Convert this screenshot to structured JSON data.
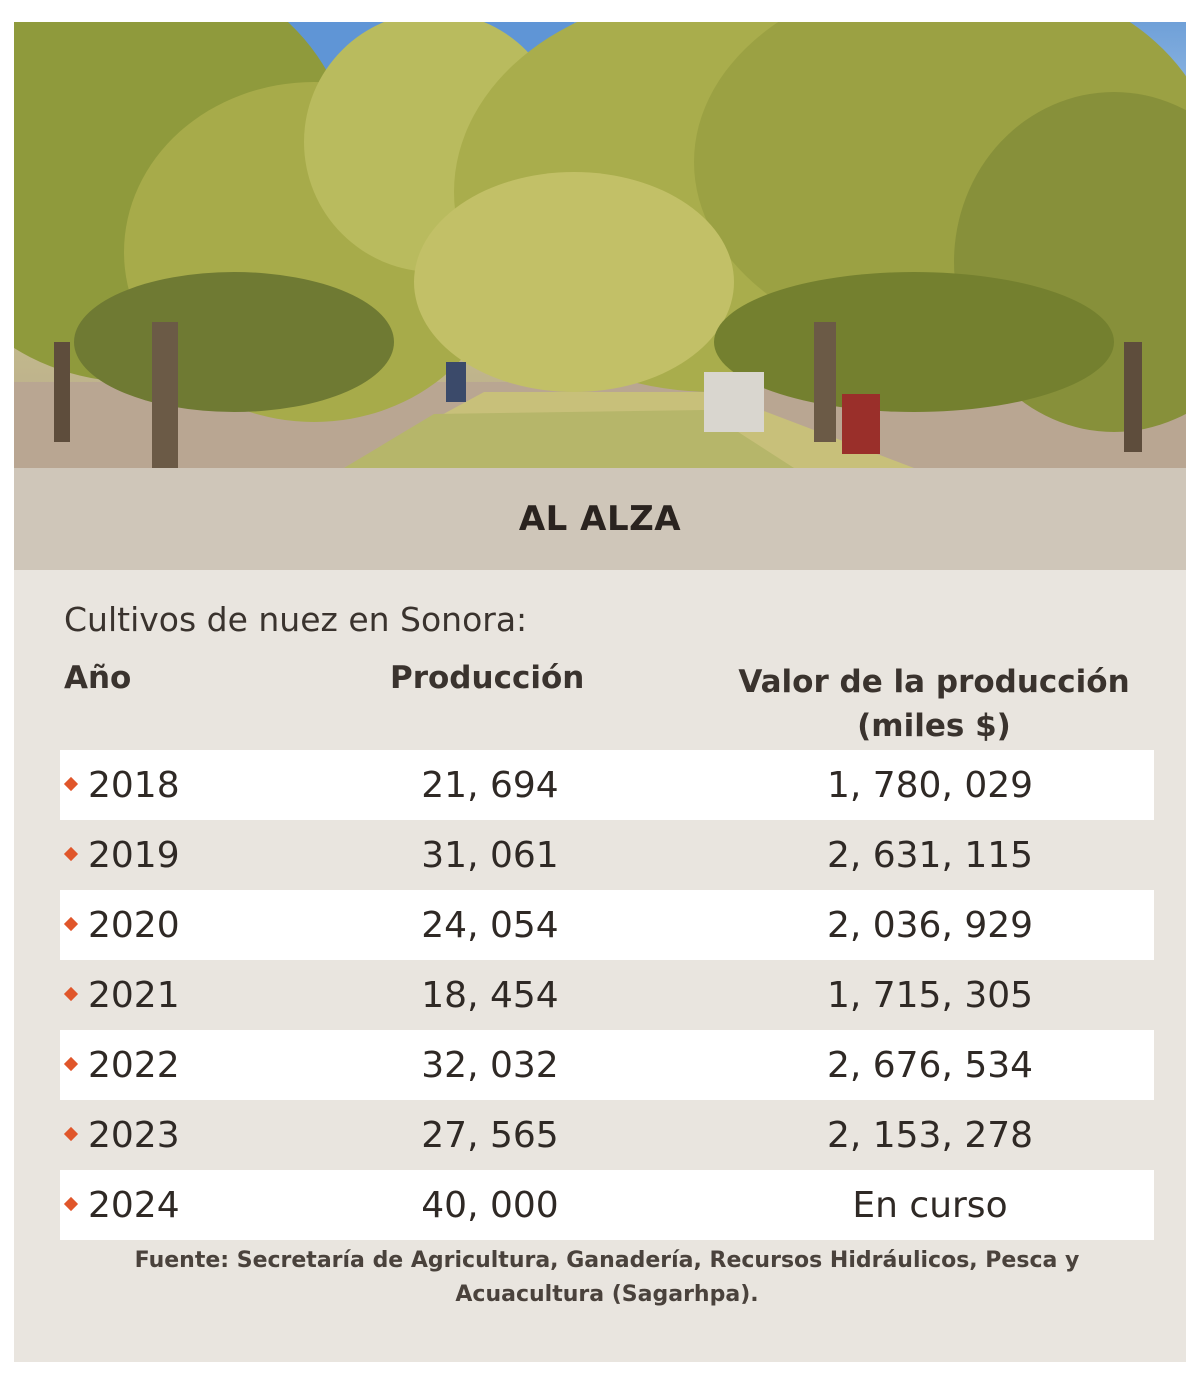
{
  "banner": {
    "title": "AL ALZA"
  },
  "subtitle": "Cultivos de nuez en Sonora:",
  "table": {
    "headers": {
      "year": "Año",
      "production": "Producción",
      "value": "Valor de la producción (miles $)"
    },
    "rows": [
      {
        "year": "2018",
        "production": "21, 694",
        "value": "1, 780, 029"
      },
      {
        "year": "2019",
        "production": "31, 061",
        "value": "2, 631, 115"
      },
      {
        "year": "2020",
        "production": "24, 054",
        "value": "2, 036, 929"
      },
      {
        "year": "2021",
        "production": "18, 454",
        "value": "1, 715, 305"
      },
      {
        "year": "2022",
        "production": "32, 032",
        "value": "2, 676, 534"
      },
      {
        "year": "2023",
        "production": "27, 565",
        "value": "2, 153, 278"
      },
      {
        "year": "2024",
        "production": "40, 000",
        "value": "En curso"
      }
    ]
  },
  "source": "Fuente: Secretaría de Agricultura, Ganadería, Recursos Hidráulicos, Pesca y Acuacultura (Sagarhpa).",
  "colors": {
    "accent": "#e0562a",
    "banner": "#cfc6b9",
    "panel": "#e9e5df",
    "row_shade": "#ffffff"
  }
}
